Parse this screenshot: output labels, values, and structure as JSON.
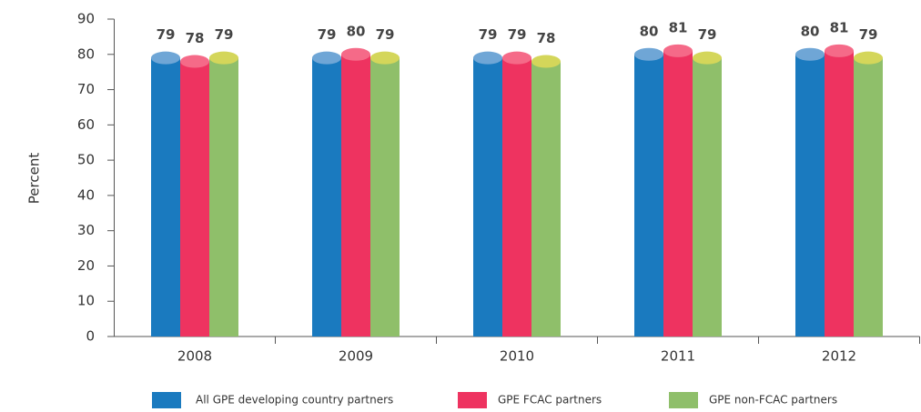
{
  "chart_data": {
    "type": "bar",
    "ylabel": "Percent",
    "categories": [
      "2008",
      "2009",
      "2010",
      "2011",
      "2012"
    ],
    "series": [
      {
        "name": "All GPE developing country partners",
        "color": "#1a7abf",
        "top_color": "#6fa6d6",
        "values": [
          79,
          79,
          79,
          80,
          80
        ]
      },
      {
        "name": "GPE FCAC partners",
        "color": "#ee3360",
        "top_color": "#f56a88",
        "values": [
          78,
          80,
          79,
          81,
          81
        ]
      },
      {
        "name": "GPE non-FCAC partners",
        "color": "#8fbf6a",
        "top_color": "#d4d65a",
        "values": [
          79,
          79,
          78,
          79,
          79
        ]
      }
    ],
    "ylim": [
      0,
      90
    ],
    "yticks": [
      0,
      10,
      20,
      30,
      40,
      50,
      60,
      70,
      80,
      90
    ]
  }
}
